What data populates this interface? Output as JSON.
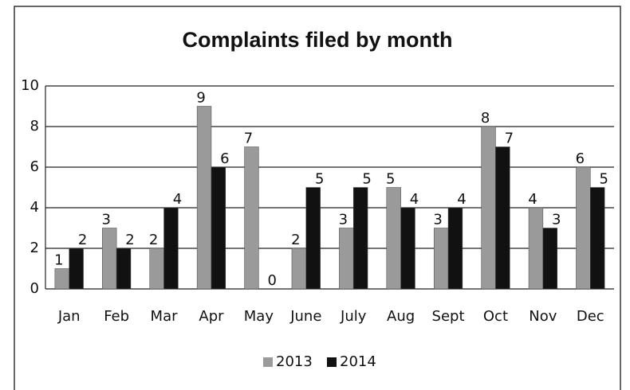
{
  "chart_data": {
    "type": "bar",
    "title": "Complaints filed by month",
    "categories": [
      "Jan",
      "Feb",
      "Mar",
      "Apr",
      "May",
      "June",
      "July",
      "Aug",
      "Sept",
      "Oct",
      "Nov",
      "Dec"
    ],
    "series": [
      {
        "name": "2013",
        "color": "#9a9a9a",
        "values": [
          1,
          3,
          2,
          9,
          7,
          2,
          3,
          5,
          3,
          8,
          4,
          6
        ]
      },
      {
        "name": "2014",
        "color": "#111111",
        "values": [
          2,
          2,
          4,
          6,
          0,
          5,
          5,
          4,
          4,
          7,
          3,
          5
        ]
      }
    ],
    "ylim": [
      0,
      10
    ],
    "yticks": [
      0,
      2,
      4,
      6,
      8,
      10
    ],
    "grid": true,
    "legend": "bottom"
  }
}
